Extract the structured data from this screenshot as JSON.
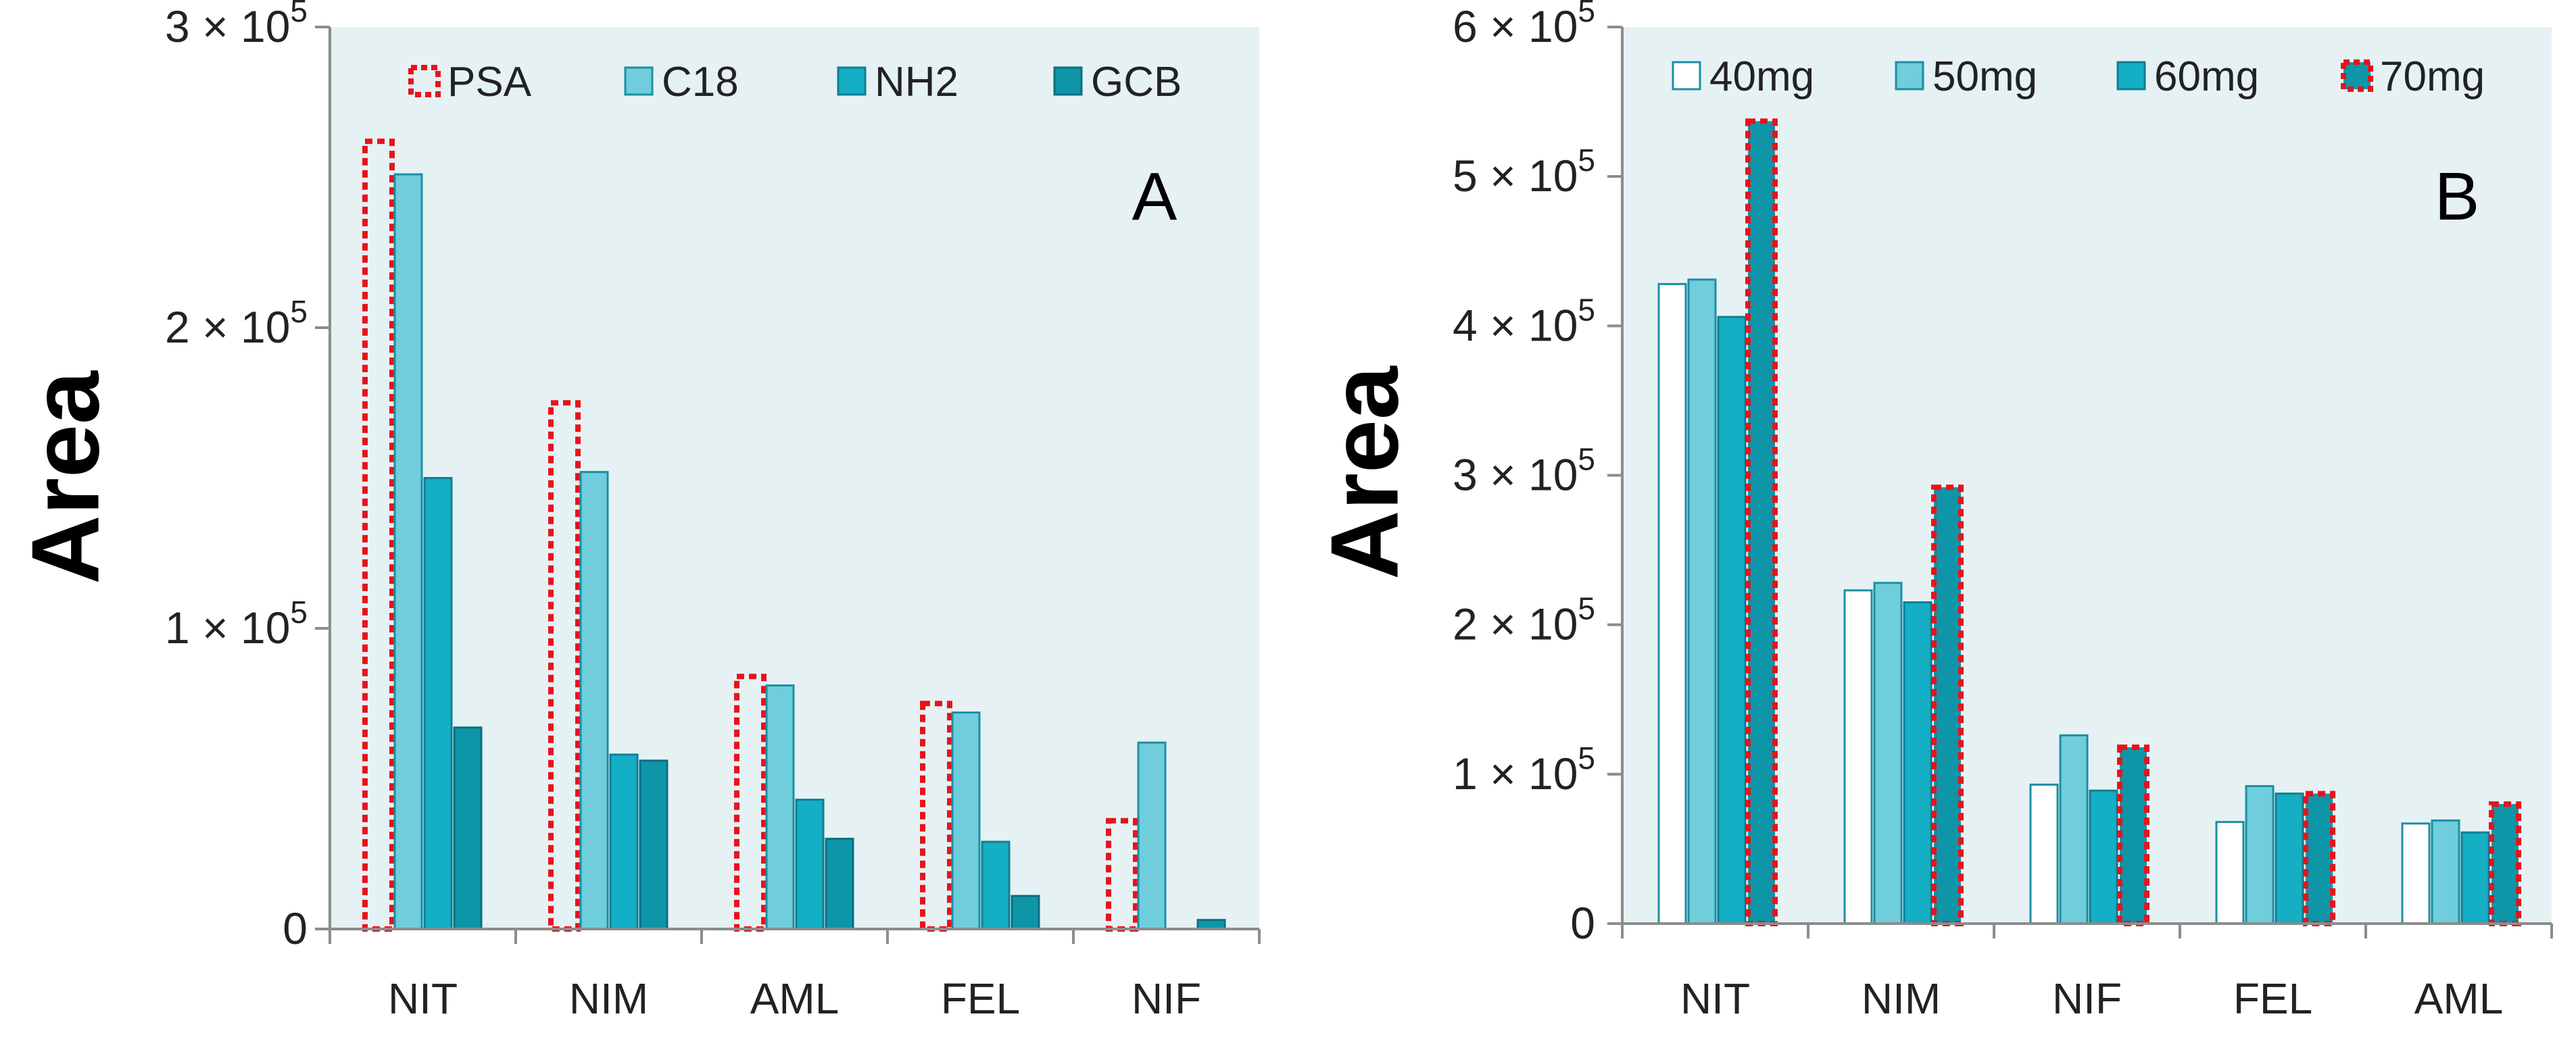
{
  "chart_data": [
    {
      "type": "bar",
      "panel_label": "A",
      "title": "",
      "xlabel": "",
      "ylabel": "Area",
      "ylim": [
        0,
        300000
      ],
      "yticks": [
        0,
        100000,
        200000,
        300000
      ],
      "ytick_labels": [
        {
          "mant": "0",
          "times": "",
          "base": "",
          "exp": ""
        },
        {
          "mant": "1",
          "times": "×",
          "base": "10",
          "exp": "5"
        },
        {
          "mant": "2",
          "times": "×",
          "base": "10",
          "exp": "5"
        },
        {
          "mant": "3",
          "times": "×",
          "base": "10",
          "exp": "5"
        }
      ],
      "grid": false,
      "legend_position": "top",
      "categories": [
        "NIT",
        "NIM",
        "AML",
        "FEL",
        "NIF"
      ],
      "series": [
        {
          "name": "PSA",
          "values": [
            262000,
            175000,
            84000,
            75000,
            36000
          ],
          "fill": "none",
          "stroke": "#e8121c",
          "dashed": true
        },
        {
          "name": "C18",
          "values": [
            251000,
            152000,
            81000,
            72000,
            62000
          ],
          "fill": "#6fcddc",
          "stroke": "#1b8fa3",
          "dashed": false
        },
        {
          "name": "NH2",
          "values": [
            150000,
            58000,
            43000,
            29000,
            0
          ],
          "fill": "#14aec5",
          "stroke": "#0e7f92",
          "dashed": false
        },
        {
          "name": "GCB",
          "values": [
            67000,
            56000,
            30000,
            11000,
            3000
          ],
          "fill": "#0e95a8",
          "stroke": "#0b6f80",
          "dashed": false
        }
      ]
    },
    {
      "type": "bar",
      "panel_label": "B",
      "title": "",
      "xlabel": "",
      "ylabel": "Area",
      "ylim": [
        0,
        600000
      ],
      "yticks": [
        0,
        100000,
        200000,
        300000,
        400000,
        500000,
        600000
      ],
      "ytick_labels": [
        {
          "mant": "0",
          "times": "",
          "base": "",
          "exp": ""
        },
        {
          "mant": "1",
          "times": "×",
          "base": "10",
          "exp": "5"
        },
        {
          "mant": "2",
          "times": "×",
          "base": "10",
          "exp": "5"
        },
        {
          "mant": "3",
          "times": "×",
          "base": "10",
          "exp": "5"
        },
        {
          "mant": "4",
          "times": "×",
          "base": "10",
          "exp": "5"
        },
        {
          "mant": "5",
          "times": "×",
          "base": "10",
          "exp": "5"
        },
        {
          "mant": "6",
          "times": "×",
          "base": "10",
          "exp": "5"
        }
      ],
      "grid": false,
      "legend_position": "top",
      "categories": [
        "NIT",
        "NIM",
        "NIF",
        "FEL",
        "AML"
      ],
      "series": [
        {
          "name": "40mg",
          "values": [
            428000,
            223000,
            93000,
            68000,
            67000
          ],
          "fill": "#ffffff",
          "stroke": "#1b8fa3",
          "dashed": false
        },
        {
          "name": "50mg",
          "values": [
            431000,
            228000,
            126000,
            92000,
            69000
          ],
          "fill": "#6fcddc",
          "stroke": "#1b8fa3",
          "dashed": false
        },
        {
          "name": "60mg",
          "values": [
            406000,
            215000,
            89000,
            87000,
            61000
          ],
          "fill": "#14aec5",
          "stroke": "#0e7f92",
          "dashed": false
        },
        {
          "name": "70mg",
          "values": [
            537000,
            292000,
            118000,
            87000,
            80000
          ],
          "fill": "#0e95a8",
          "stroke": "#e8121c",
          "dashed": true
        }
      ]
    }
  ]
}
